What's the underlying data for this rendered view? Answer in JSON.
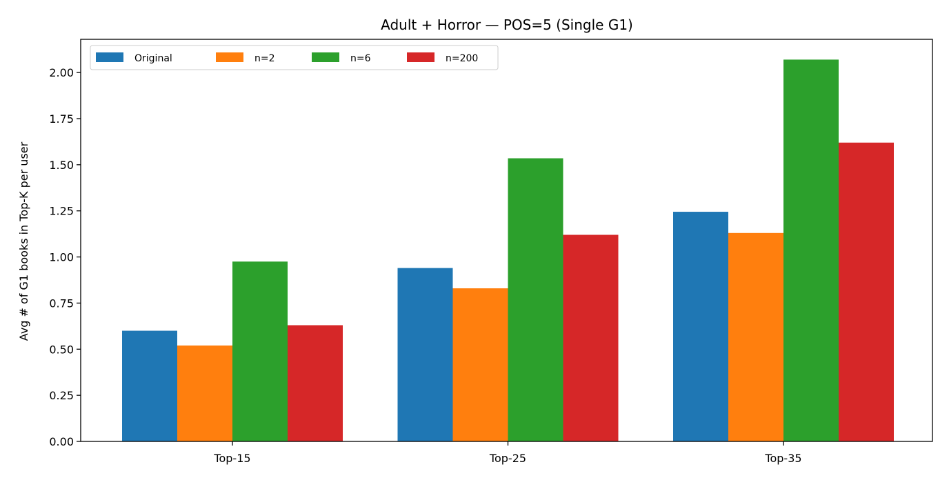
{
  "chart_data": {
    "type": "bar",
    "title": "Adult + Horror — POS=5 (Single G1)",
    "xlabel": "",
    "ylabel": "Avg # of G1 books in Top-K per user",
    "categories": [
      "Top-15",
      "Top-25",
      "Top-35"
    ],
    "series": [
      {
        "name": "Original",
        "color": "#1f77b4",
        "values": [
          0.6,
          0.94,
          1.245
        ]
      },
      {
        "name": "n=2",
        "color": "#ff7f0e",
        "values": [
          0.52,
          0.83,
          1.13
        ]
      },
      {
        "name": "n=6",
        "color": "#2ca02c",
        "values": [
          0.975,
          1.535,
          2.07
        ]
      },
      {
        "name": "n=200",
        "color": "#d62728",
        "values": [
          0.63,
          1.12,
          1.62
        ]
      }
    ],
    "ylim": [
      0,
      2.18
    ],
    "yticks": [
      0,
      0.25,
      0.5,
      0.75,
      1.0,
      1.25,
      1.5,
      1.75,
      2.0
    ],
    "ytick_labels": [
      "0.00",
      "0.25",
      "0.50",
      "0.75",
      "1.00",
      "1.25",
      "1.50",
      "1.75",
      "2.00"
    ],
    "legend_position": "top-left",
    "legend_columns": 4,
    "grid": false
  }
}
